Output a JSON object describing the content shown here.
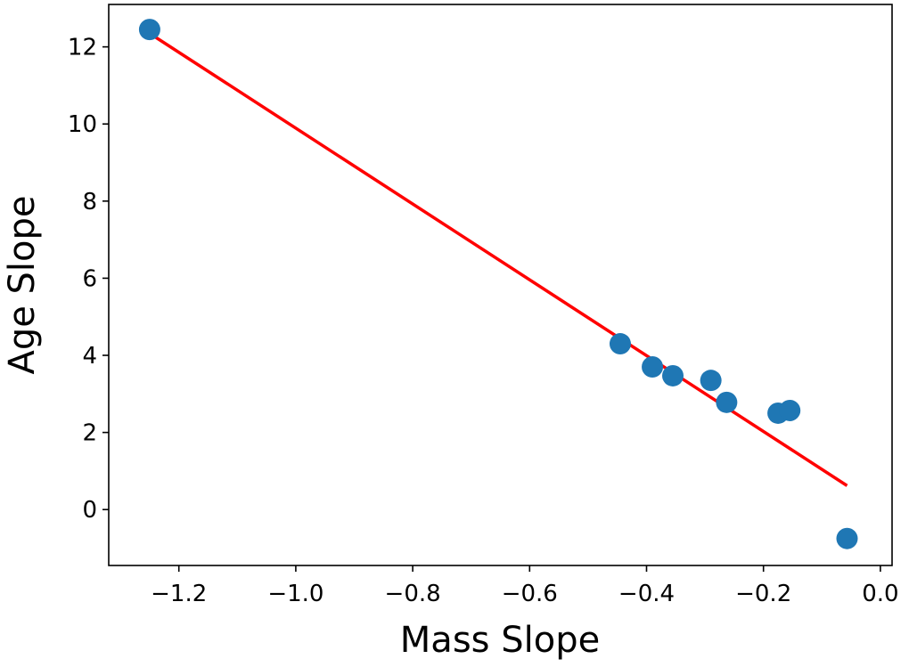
{
  "chart_data": {
    "type": "scatter",
    "title": "",
    "xlabel": "Mass Slope",
    "ylabel": "Age Slope",
    "xlim": [
      -1.32,
      0.02
    ],
    "ylim": [
      -1.45,
      13.1
    ],
    "x_ticks": [
      -1.2,
      -1.0,
      -0.8,
      -0.6,
      -0.4,
      -0.2,
      0.0
    ],
    "x_tick_labels": [
      "−1.2",
      "−1.0",
      "−0.8",
      "−0.6",
      "−0.4",
      "−0.2",
      "0.0"
    ],
    "y_ticks": [
      0,
      2,
      4,
      6,
      8,
      10,
      12
    ],
    "y_tick_labels": [
      "0",
      "2",
      "4",
      "6",
      "8",
      "10",
      "12"
    ],
    "grid": false,
    "series": [
      {
        "name": "data points",
        "kind": "scatter",
        "color": "#1f77b4",
        "points": [
          {
            "x": -1.25,
            "y": 12.45
          },
          {
            "x": -0.445,
            "y": 4.3
          },
          {
            "x": -0.39,
            "y": 3.7
          },
          {
            "x": -0.355,
            "y": 3.47
          },
          {
            "x": -0.29,
            "y": 3.35
          },
          {
            "x": -0.263,
            "y": 2.78
          },
          {
            "x": -0.175,
            "y": 2.5
          },
          {
            "x": -0.155,
            "y": 2.57
          },
          {
            "x": -0.057,
            "y": -0.75
          }
        ]
      },
      {
        "name": "linear fit",
        "kind": "line",
        "color": "#ff0000",
        "points": [
          {
            "x": -1.25,
            "y": 12.35
          },
          {
            "x": -0.057,
            "y": 0.62
          }
        ]
      }
    ]
  }
}
